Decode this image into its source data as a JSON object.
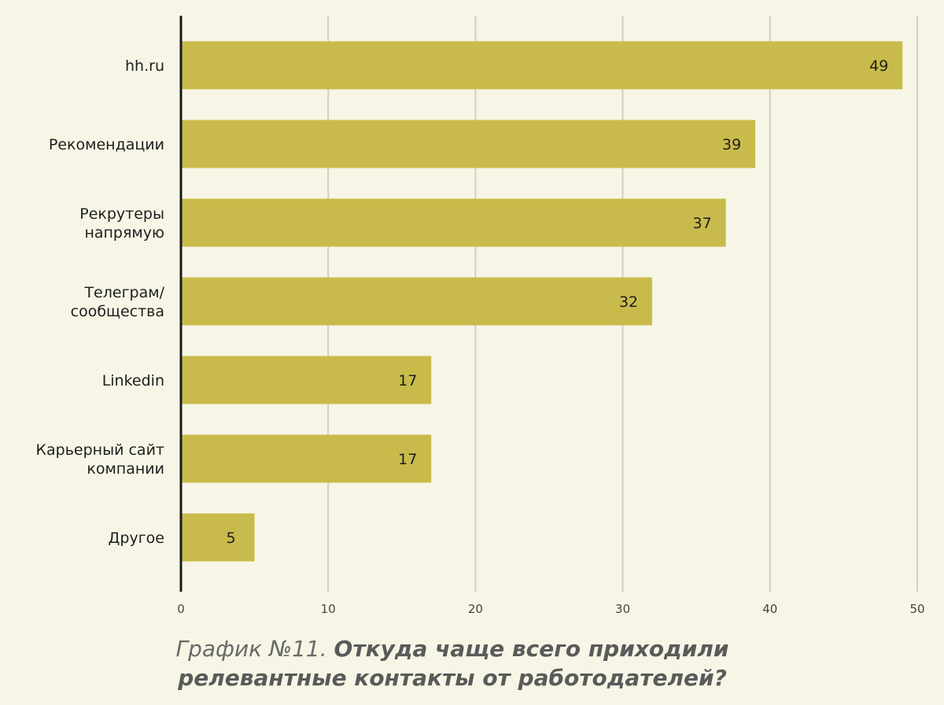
{
  "chart_data": {
    "type": "bar",
    "orientation": "horizontal",
    "categories": [
      [
        "hh.ru"
      ],
      [
        "Рекомендации"
      ],
      [
        "Рекрутеры",
        "напрямую"
      ],
      [
        "Телеграм/",
        "сообщества"
      ],
      [
        "Linkedin"
      ],
      [
        "Карьерный сайт",
        "компании"
      ],
      [
        "Другое"
      ]
    ],
    "values": [
      49,
      39,
      37,
      32,
      17,
      17,
      5
    ],
    "value_labels": [
      "49",
      "39",
      "37",
      "32",
      "17",
      "17",
      "5"
    ],
    "xlim": [
      0,
      50
    ],
    "ticks": [
      0,
      10,
      20,
      30,
      40,
      50
    ],
    "tick_labels": [
      "0",
      "10",
      "20",
      "30",
      "40",
      "50"
    ],
    "grid": true,
    "bar_color": "#c9bb4b",
    "background_color": "#f7f6e6"
  },
  "caption": {
    "lead": "График №11.",
    "question_line1": "Откуда чаще всего приходили",
    "question_line2": "релевантные контакты от работодателей?"
  }
}
